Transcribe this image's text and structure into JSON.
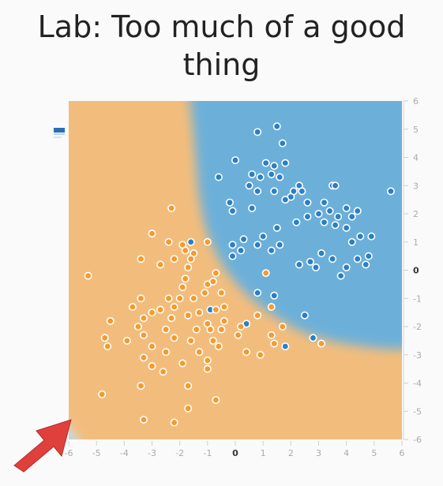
{
  "slide": {
    "title_line1": "Lab: Too much of a good",
    "title_line2": "thing"
  },
  "colors": {
    "orange_region": "#f2bd7c",
    "blue_region": "#6cb0da",
    "orange_point": "#f59a2e",
    "blue_point": "#2b7fc6",
    "arrow": "#e0403c"
  },
  "chart_data": {
    "type": "scatter",
    "xlim": [
      -6,
      6
    ],
    "ylim": [
      -6,
      6
    ],
    "x_ticks": [
      "-6",
      "-5",
      "-4",
      "-3",
      "-2",
      "-1",
      "0",
      "1",
      "2",
      "3",
      "4",
      "5",
      "6"
    ],
    "y_ticks": [
      "6",
      "5",
      "4",
      "3",
      "2",
      "1",
      "0",
      "-1",
      "-2",
      "-3",
      "-4",
      "-5",
      "-6"
    ],
    "decision_boundary": "rectangular hyperbola in top-right quadrant; small blue region in bottom-left corner",
    "series": [
      {
        "class": "blue",
        "points": [
          [
            1.5,
            5.1
          ],
          [
            0.8,
            4.9
          ],
          [
            1.7,
            4.5
          ],
          [
            0.0,
            3.9
          ],
          [
            1.1,
            3.8
          ],
          [
            1.4,
            3.7
          ],
          [
            1.8,
            3.8
          ],
          [
            0.6,
            3.4
          ],
          [
            0.9,
            3.3
          ],
          [
            1.3,
            3.4
          ],
          [
            1.6,
            3.3
          ],
          [
            -0.6,
            3.3
          ],
          [
            0.5,
            3.0
          ],
          [
            2.3,
            3.0
          ],
          [
            3.5,
            3.0
          ],
          [
            3.6,
            3.0
          ],
          [
            0.8,
            2.8
          ],
          [
            1.4,
            2.8
          ],
          [
            2.0,
            2.6
          ],
          [
            2.1,
            2.8
          ],
          [
            2.4,
            2.8
          ],
          [
            5.6,
            2.8
          ],
          [
            1.8,
            2.5
          ],
          [
            2.6,
            2.4
          ],
          [
            3.2,
            2.4
          ],
          [
            -0.2,
            2.4
          ],
          [
            0.6,
            2.2
          ],
          [
            -0.1,
            2.1
          ],
          [
            3.0,
            2.0
          ],
          [
            3.4,
            2.1
          ],
          [
            4.0,
            2.2
          ],
          [
            4.4,
            2.1
          ],
          [
            2.6,
            1.9
          ],
          [
            3.7,
            1.9
          ],
          [
            4.2,
            1.9
          ],
          [
            2.2,
            1.7
          ],
          [
            3.2,
            1.7
          ],
          [
            3.6,
            1.6
          ],
          [
            4.0,
            1.5
          ],
          [
            1.5,
            1.5
          ],
          [
            1.0,
            1.2
          ],
          [
            0.3,
            1.1
          ],
          [
            4.5,
            1.2
          ],
          [
            4.9,
            1.2
          ],
          [
            4.2,
            1.0
          ],
          [
            0.8,
            0.9
          ],
          [
            1.6,
            0.9
          ],
          [
            0.2,
            0.7
          ],
          [
            1.3,
            0.7
          ],
          [
            -0.1,
            0.9
          ],
          [
            3.1,
            0.6
          ],
          [
            4.8,
            0.5
          ],
          [
            4.4,
            0.4
          ],
          [
            3.5,
            0.4
          ],
          [
            2.7,
            0.3
          ],
          [
            2.3,
            0.2
          ],
          [
            2.9,
            0.1
          ],
          [
            4.0,
            0.1
          ],
          [
            4.7,
            0.2
          ],
          [
            3.8,
            -0.2
          ],
          [
            -1.6,
            1.0
          ],
          [
            -0.1,
            0.5
          ],
          [
            0.8,
            -0.8
          ],
          [
            1.4,
            -0.9
          ],
          [
            -0.9,
            -1.4
          ],
          [
            2.5,
            -1.6
          ],
          [
            0.4,
            -1.9
          ],
          [
            1.8,
            -2.7
          ],
          [
            2.8,
            -2.4
          ]
        ]
      },
      {
        "class": "orange",
        "points": [
          [
            -2.3,
            2.2
          ],
          [
            -3.0,
            1.3
          ],
          [
            -2.4,
            1.0
          ],
          [
            -1.9,
            0.9
          ],
          [
            -1.0,
            1.0
          ],
          [
            -1.8,
            0.7
          ],
          [
            -1.5,
            0.6
          ],
          [
            -1.6,
            0.4
          ],
          [
            -3.4,
            0.4
          ],
          [
            -2.2,
            0.4
          ],
          [
            -2.7,
            0.2
          ],
          [
            -1.7,
            0.1
          ],
          [
            -0.7,
            -0.1
          ],
          [
            1.1,
            -0.1
          ],
          [
            -5.3,
            -0.2
          ],
          [
            -1.8,
            -0.3
          ],
          [
            -1.0,
            -0.5
          ],
          [
            -0.8,
            -0.4
          ],
          [
            -1.9,
            -0.6
          ],
          [
            -1.1,
            -0.8
          ],
          [
            -0.5,
            -0.8
          ],
          [
            -3.4,
            -1.0
          ],
          [
            -2.4,
            -1.0
          ],
          [
            -2.0,
            -1.0
          ],
          [
            -1.5,
            -1.0
          ],
          [
            -0.4,
            -1.3
          ],
          [
            -3.7,
            -1.3
          ],
          [
            -2.7,
            -1.4
          ],
          [
            -2.2,
            -1.3
          ],
          [
            -1.3,
            -1.5
          ],
          [
            -0.7,
            -1.4
          ],
          [
            1.3,
            -1.3
          ],
          [
            -3.0,
            -1.5
          ],
          [
            -4.5,
            -1.8
          ],
          [
            -3.3,
            -1.7
          ],
          [
            -3.5,
            -2.0
          ],
          [
            -1.7,
            -1.6
          ],
          [
            -0.4,
            -1.8
          ],
          [
            -2.3,
            -1.7
          ],
          [
            -1.0,
            -1.9
          ],
          [
            -0.5,
            -2.1
          ],
          [
            0.2,
            -2.0
          ],
          [
            0.8,
            -1.6
          ],
          [
            1.7,
            -2.0
          ],
          [
            -0.9,
            -2.1
          ],
          [
            -1.4,
            -2.1
          ],
          [
            -2.5,
            -2.1
          ],
          [
            -3.3,
            -2.3
          ],
          [
            -4.7,
            -2.4
          ],
          [
            -3.9,
            -2.5
          ],
          [
            -2.2,
            -2.4
          ],
          [
            0.1,
            -2.3
          ],
          [
            1.3,
            -2.3
          ],
          [
            -1.6,
            -2.5
          ],
          [
            -0.8,
            -2.5
          ],
          [
            -4.6,
            -2.7
          ],
          [
            -3.0,
            -2.7
          ],
          [
            -1.3,
            -2.9
          ],
          [
            -0.6,
            -2.7
          ],
          [
            0.4,
            -2.9
          ],
          [
            0.9,
            -3.0
          ],
          [
            1.4,
            -2.6
          ],
          [
            -2.5,
            -2.9
          ],
          [
            -1.0,
            -3.2
          ],
          [
            -3.3,
            -3.1
          ],
          [
            -3.0,
            -3.4
          ],
          [
            -1.9,
            -3.3
          ],
          [
            -1.0,
            -3.5
          ],
          [
            -2.6,
            -3.6
          ],
          [
            -3.4,
            -4.1
          ],
          [
            -1.7,
            -4.1
          ],
          [
            -4.8,
            -4.4
          ],
          [
            -0.7,
            -4.6
          ],
          [
            -1.7,
            -4.9
          ],
          [
            -3.3,
            -5.3
          ],
          [
            -2.2,
            -5.4
          ],
          [
            3.1,
            -2.6
          ]
        ]
      }
    ]
  }
}
